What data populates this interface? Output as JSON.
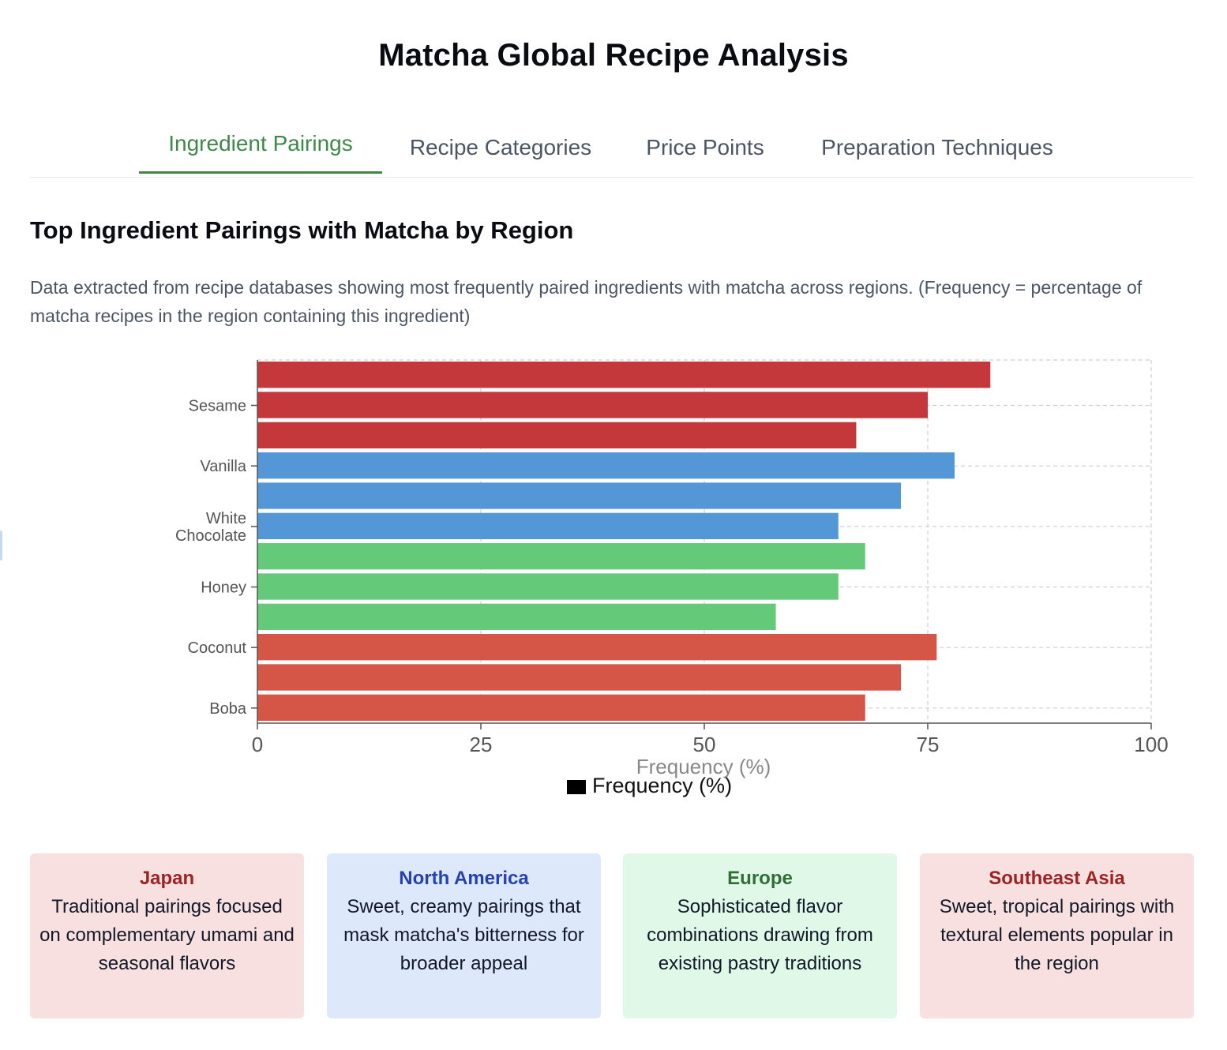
{
  "header": {
    "title": "Matcha Global Recipe Analysis"
  },
  "tabs": [
    {
      "label": "Ingredient Pairings",
      "active": true
    },
    {
      "label": "Recipe Categories",
      "active": false
    },
    {
      "label": "Price Points",
      "active": false
    },
    {
      "label": "Preparation Techniques",
      "active": false
    }
  ],
  "section": {
    "title": "Top Ingredient Pairings with Matcha by Region",
    "description": "Data extracted from recipe databases showing most frequently paired ingredients with matcha across regions. (Frequency = percentage of matcha recipes in the region containing this ingredient)"
  },
  "colors": {
    "accent": "#3c8a46",
    "japan": "#c4373a",
    "north_america": "#5397d6",
    "europe": "#65c97a",
    "southeast_asia": "#d55546"
  },
  "chart_data": {
    "type": "bar",
    "orientation": "horizontal",
    "categories": [
      "",
      "Sesame",
      "",
      "Vanilla",
      "",
      "White Chocolate",
      "",
      "Honey",
      "",
      "Coconut",
      "",
      "Boba"
    ],
    "values": [
      82,
      75,
      67,
      78,
      72,
      65,
      68,
      65,
      58,
      76,
      72,
      68
    ],
    "bar_colors": [
      "#c4373a",
      "#c4373a",
      "#c4373a",
      "#5397d6",
      "#5397d6",
      "#5397d6",
      "#65c97a",
      "#65c97a",
      "#65c97a",
      "#d55546",
      "#d55546",
      "#d55546"
    ],
    "xlabel": "Frequency (%)",
    "xlim": [
      0,
      100
    ],
    "xticks": [
      "0",
      "25",
      "50",
      "75",
      "100"
    ],
    "grid": true,
    "legend": {
      "label": "Frequency (%)",
      "position": "bottom"
    }
  },
  "regions": [
    {
      "name": "Japan",
      "text": "Traditional pairings focused on complementary umami and seasonal flavors"
    },
    {
      "name": "North America",
      "text": "Sweet, creamy pairings that mask matcha's bitterness for broader appeal"
    },
    {
      "name": "Europe",
      "text": "Sophisticated flavor combinations drawing from existing pastry traditions"
    },
    {
      "name": "Southeast Asia",
      "text": "Sweet, tropical pairings with textural elements popular in the region"
    }
  ]
}
